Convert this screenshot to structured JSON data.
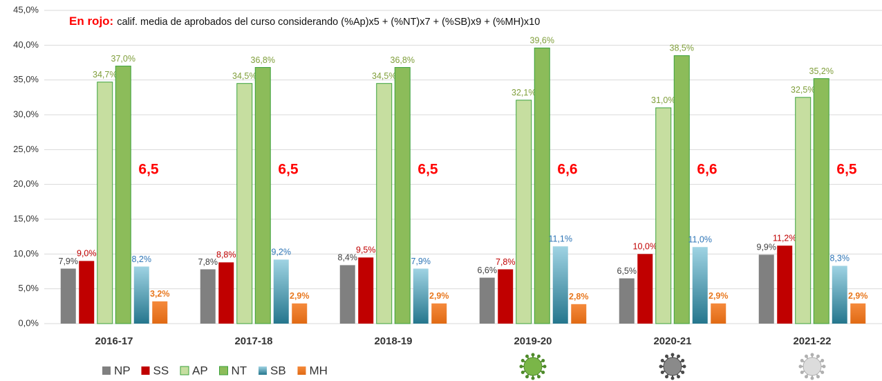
{
  "chart_data": {
    "type": "bar",
    "title_highlight": "En rojo:",
    "title": "calif. media de aprobados del curso considerando (%Ap)x5 + (%NT)x7 + (%SB)x9 + (%MH)x10",
    "categories": [
      "2016-17",
      "2017-18",
      "2018-19",
      "2019-20",
      "2020-21",
      "2021-22"
    ],
    "grade_labels": [
      "6,5",
      "6,5",
      "6,5",
      "6,6",
      "6,6",
      "6,5"
    ],
    "series": [
      {
        "name": "NP",
        "color": "#808080",
        "values": [
          7.9,
          7.8,
          8.4,
          6.6,
          6.5,
          9.9
        ],
        "value_labels": [
          "7,9%",
          "7,8%",
          "8,4%",
          "6,6%",
          "6,5%",
          "9,9%"
        ]
      },
      {
        "name": "SS",
        "color": "#c00000",
        "values": [
          9.0,
          8.8,
          9.5,
          7.8,
          10.0,
          11.2
        ],
        "value_labels": [
          "9,0%",
          "8,8%",
          "9,5%",
          "7,8%",
          "10,0%",
          "11,2%"
        ]
      },
      {
        "name": "AP",
        "color": "#c6dea0",
        "values": [
          34.7,
          34.5,
          34.5,
          32.1,
          31.0,
          32.5
        ],
        "value_labels": [
          "34,7%",
          "34,5%",
          "34,5%",
          "32,1%",
          "31,0%",
          "32,5%"
        ]
      },
      {
        "name": "NT",
        "color": "#8cbc5a",
        "values": [
          37.0,
          36.8,
          36.8,
          39.6,
          38.5,
          35.2
        ],
        "value_labels": [
          "37,0%",
          "36,8%",
          "36,8%",
          "39,6%",
          "38,5%",
          "35,2%"
        ]
      },
      {
        "name": "SB",
        "color": "#4aa3bd",
        "values": [
          8.2,
          9.2,
          7.9,
          11.1,
          11.0,
          8.3
        ],
        "value_labels": [
          "8,2%",
          "9,2%",
          "7,9%",
          "11,1%",
          "11,0%",
          "8,3%"
        ]
      },
      {
        "name": "MH",
        "color": "#f07a28",
        "values": [
          3.2,
          2.9,
          2.9,
          2.8,
          2.9,
          2.9
        ],
        "value_labels": [
          "3,2%",
          "2,9%",
          "2,9%",
          "2,8%",
          "2,9%",
          "2,9%"
        ]
      }
    ],
    "ylim": [
      0,
      45
    ],
    "yticks": [
      {
        "value": 0,
        "label": "0,0%"
      },
      {
        "value": 5,
        "label": "5,0%"
      },
      {
        "value": 10,
        "label": "10,0%"
      },
      {
        "value": 15,
        "label": "15,0%"
      },
      {
        "value": 20,
        "label": "20,0%"
      },
      {
        "value": 25,
        "label": "25,0%"
      },
      {
        "value": 30,
        "label": "30,0%"
      },
      {
        "value": 35,
        "label": "35,0%"
      },
      {
        "value": 40,
        "label": "40,0%"
      },
      {
        "value": 45,
        "label": "45,0%"
      }
    ],
    "grid": true
  }
}
